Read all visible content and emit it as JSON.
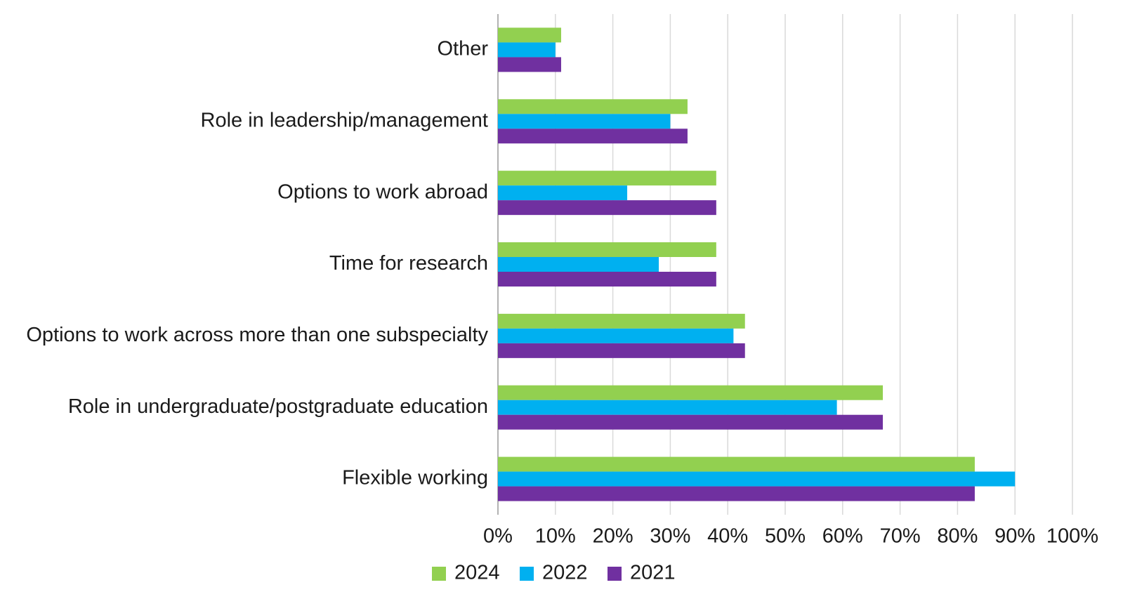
{
  "chart_data": {
    "type": "hbar",
    "categories": [
      "Other",
      "Role in leadership/management",
      "Options to work abroad",
      "Time for research",
      "Options to work across more than one subspecialty",
      "Role in undergraduate/postgraduate education",
      "Flexible working"
    ],
    "series": [
      {
        "name": "2024",
        "color": "#92d050",
        "values": [
          11,
          33,
          38,
          38,
          43,
          67,
          83
        ]
      },
      {
        "name": "2022",
        "color": "#00b0f0",
        "values": [
          10,
          30,
          22.5,
          28,
          41,
          59,
          90
        ]
      },
      {
        "name": "2021",
        "color": "#7030a0",
        "values": [
          11,
          33,
          38,
          38,
          43,
          67,
          83
        ]
      }
    ],
    "xlim": [
      0,
      100
    ],
    "xticks": [
      {
        "value": 0,
        "label": "0%"
      },
      {
        "value": 10,
        "label": "10%"
      },
      {
        "value": 20,
        "label": "20%"
      },
      {
        "value": 30,
        "label": "30%"
      },
      {
        "value": 40,
        "label": "40%"
      },
      {
        "value": 50,
        "label": "50%"
      },
      {
        "value": 60,
        "label": "60%"
      },
      {
        "value": 70,
        "label": "70%"
      },
      {
        "value": 80,
        "label": "80%"
      },
      {
        "value": 90,
        "label": "90%"
      },
      {
        "value": 100,
        "label": "100%"
      }
    ],
    "grid": true,
    "legend": "bottom"
  }
}
